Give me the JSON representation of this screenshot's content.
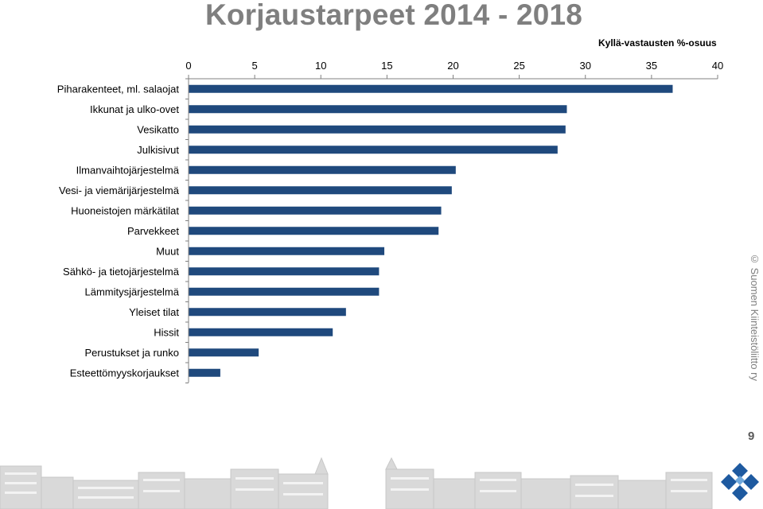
{
  "page": {
    "title": "Korjaustarpeet  2014 - 2018",
    "measure_label": "Kyllä-vastausten %-osuus",
    "copyright": "© Suomen Kiinteistöliitto ry",
    "page_number": "9"
  },
  "chart_data": {
    "type": "bar",
    "orientation": "horizontal",
    "title": "Korjaustarpeet  2014 - 2018",
    "xlabel": "Kyllä-vastausten %-osuus",
    "ylabel": "",
    "xlim": [
      0,
      40
    ],
    "ticks": [
      0,
      5,
      10,
      15,
      20,
      25,
      30,
      35,
      40
    ],
    "tick_position": "top",
    "grid": false,
    "bar_color": "#1f497d",
    "categories": [
      "Piharakenteet, ml. salaojat",
      "Ikkunat ja ulko-ovet",
      "Vesikatto",
      "Julkisivut",
      "Ilmanvaihtojärjestelmä",
      "Vesi- ja viemärijärjestelmä",
      "Huoneistojen märkätilat",
      "Parvekkeet",
      "Muut",
      "Sähkö- ja tietojärjestelmä",
      "Lämmitysjärjestelmä",
      "Yleiset tilat",
      "Hissit",
      "Perustukset ja runko",
      "Esteettömyyskorjaukset"
    ],
    "values": [
      36.6,
      28.6,
      28.5,
      27.9,
      20.2,
      19.9,
      19.1,
      18.9,
      14.8,
      14.4,
      14.4,
      11.9,
      10.9,
      5.3,
      2.4
    ]
  }
}
